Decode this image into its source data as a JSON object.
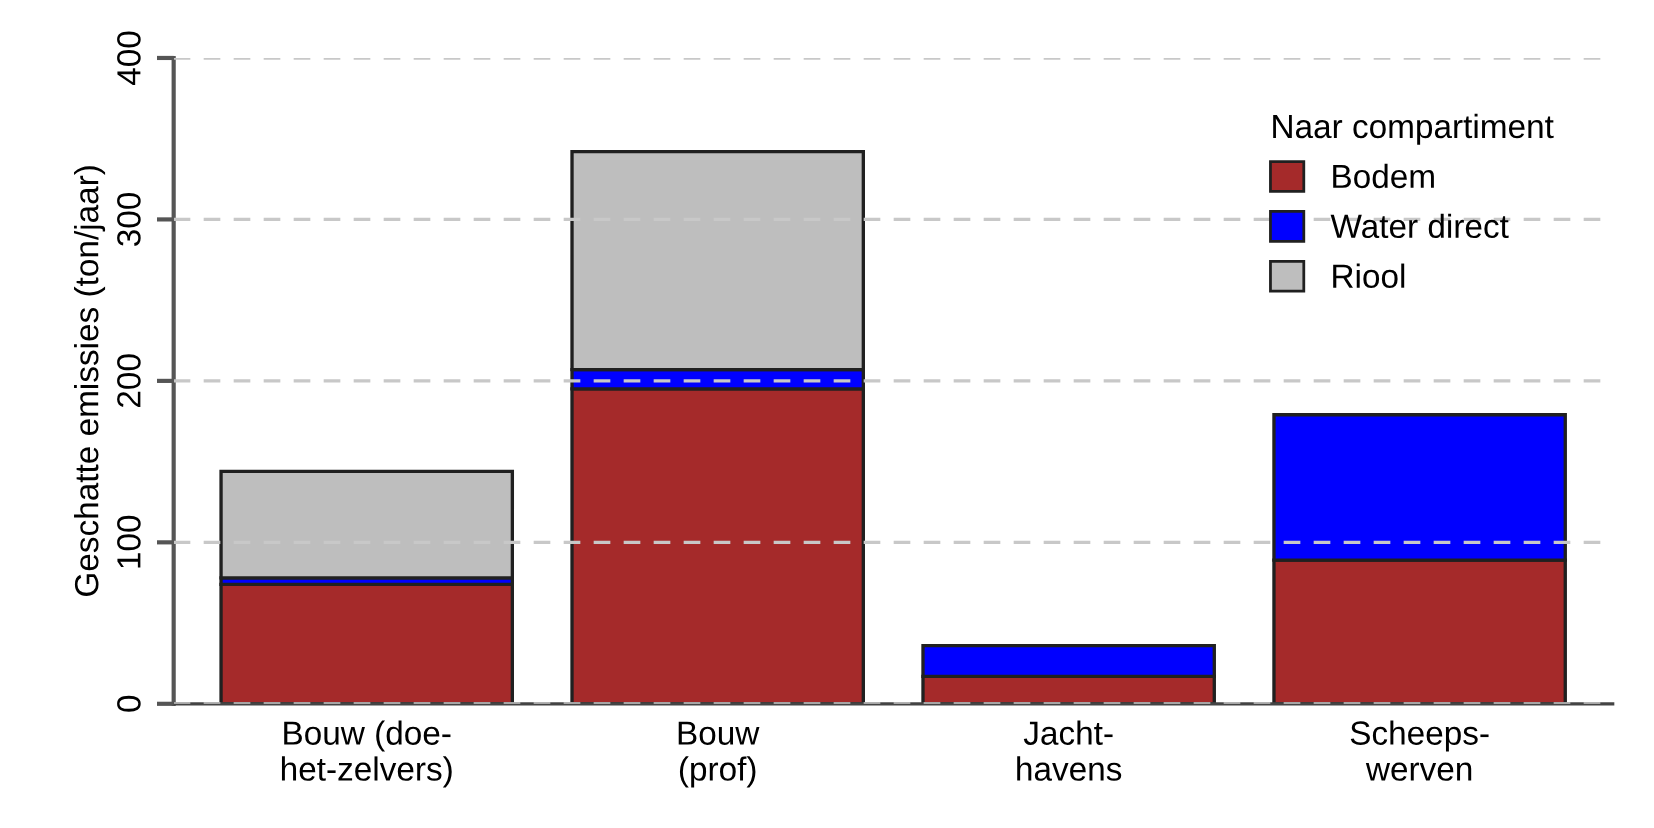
{
  "chart_data": {
    "type": "bar",
    "stacked": true,
    "categories": [
      "Bouw (doe-\nhet-zelvers)",
      "Bouw\n(prof)",
      "Jacht-\nhavens",
      "Scheeps-\nwerven"
    ],
    "ylabel": "Geschatte emissies (ton/jaar)",
    "legend_title": "Naar compartiment",
    "series": [
      {
        "name": "Bodem",
        "color": "#a52a2a",
        "values": [
          74,
          195,
          17,
          89
        ]
      },
      {
        "name": "Water direct",
        "color": "#0000ff",
        "values": [
          4,
          12,
          19,
          90
        ]
      },
      {
        "name": "Riool",
        "color": "#bebebe",
        "values": [
          66,
          135,
          null,
          null
        ]
      }
    ],
    "ylim": [
      0,
      400
    ],
    "yticks": [
      0,
      100,
      200,
      300,
      400
    ],
    "grid": "y",
    "legend": "top right"
  }
}
